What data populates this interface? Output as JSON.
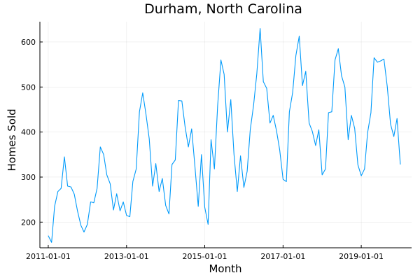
{
  "chart_data": {
    "type": "line",
    "title": "Durham, North Carolina",
    "xlabel": "Month",
    "ylabel": "Homes Sold",
    "x_start": "2011-01-01",
    "x_interval": "month",
    "xlim": [
      "2010-10-15",
      "2020-04-15"
    ],
    "ylim": [
      143,
      645
    ],
    "x_ticks": [
      "2011-01-01",
      "2013-01-01",
      "2015-01-01",
      "2017-01-01",
      "2019-01-01"
    ],
    "y_ticks": [
      200,
      300,
      400,
      500,
      600
    ],
    "grid": true,
    "legend": "none",
    "series": [
      {
        "color": "#009AFA",
        "values": [
          170,
          155,
          235,
          268,
          275,
          345,
          280,
          278,
          262,
          225,
          193,
          178,
          195,
          245,
          243,
          275,
          367,
          350,
          305,
          285,
          227,
          263,
          225,
          245,
          215,
          212,
          290,
          318,
          445,
          487,
          440,
          385,
          280,
          330,
          268,
          297,
          237,
          218,
          328,
          338,
          470,
          469,
          412,
          367,
          407,
          325,
          235,
          350,
          233,
          195,
          383,
          318,
          458,
          560,
          528,
          400,
          472,
          350,
          268,
          347,
          277,
          313,
          405,
          460,
          530,
          630,
          512,
          497,
          420,
          437,
          403,
          360,
          295,
          290,
          445,
          488,
          570,
          613,
          503,
          535,
          420,
          402,
          370,
          405,
          305,
          318,
          443,
          445,
          560,
          585,
          525,
          500,
          383,
          437,
          408,
          327,
          303,
          318,
          398,
          443,
          565,
          555,
          558,
          562,
          500,
          418,
          390,
          430,
          328
        ]
      }
    ]
  }
}
